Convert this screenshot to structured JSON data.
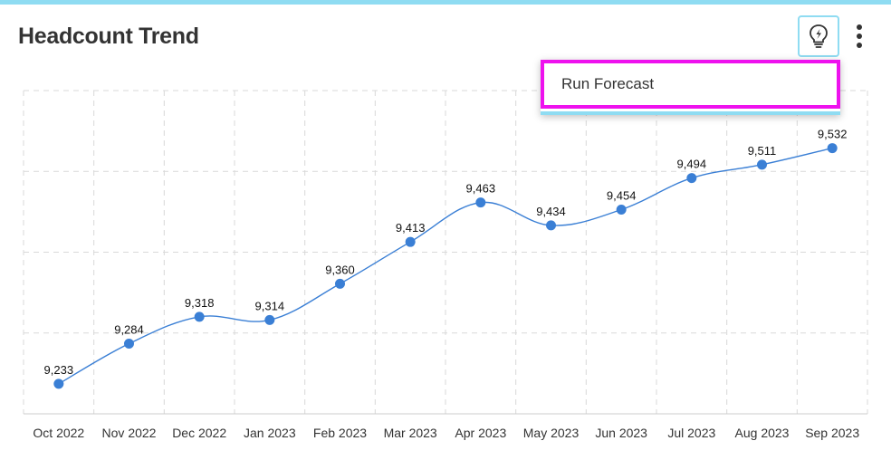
{
  "header": {
    "title": "Headcount Trend",
    "accent_color": "#8fdcf2"
  },
  "toolbar": {
    "insight_icon": "lightbulb-icon",
    "more_icon": "more-vertical-icon"
  },
  "menu": {
    "items": [
      "Run Forecast"
    ],
    "highlight_color": "#ee11ee"
  },
  "chart_data": {
    "type": "line",
    "title": "Headcount Trend",
    "categories": [
      "Oct 2022",
      "Nov 2022",
      "Dec 2022",
      "Jan 2023",
      "Feb 2023",
      "Mar 2023",
      "Apr 2023",
      "May 2023",
      "Jun 2023",
      "Jul 2023",
      "Aug 2023",
      "Sep 2023"
    ],
    "series": [
      {
        "name": "Headcount",
        "values": [
          9233,
          9284,
          9318,
          9314,
          9360,
          9413,
          9463,
          9434,
          9454,
          9494,
          9511,
          9532
        ],
        "labels": [
          "9,233",
          "9,284",
          "9,318",
          "9,314",
          "9,360",
          "9,413",
          "9,463",
          "9,434",
          "9,454",
          "9,494",
          "9,511",
          "9,532"
        ],
        "color": "#3a7fd5"
      }
    ],
    "xlabel": "",
    "ylabel": "",
    "ylim": [
      9195,
      9605
    ],
    "grid": true,
    "smooth": true
  }
}
